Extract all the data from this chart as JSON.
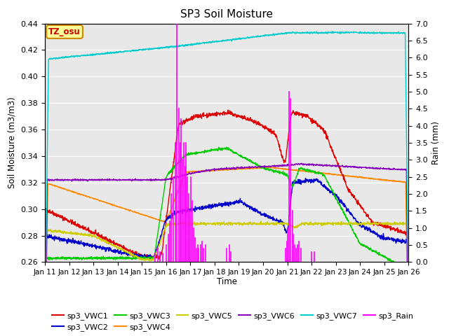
{
  "title": "SP3 Soil Moisture",
  "xlabel": "Time",
  "ylabel_left": "Soil Moisture (m3/m3)",
  "ylabel_right": "Rain (mm)",
  "xlim": [
    0,
    15
  ],
  "ylim_left": [
    0.26,
    0.44
  ],
  "ylim_right": [
    0.0,
    7.0
  ],
  "yticks_left": [
    0.26,
    0.28,
    0.3,
    0.32,
    0.34,
    0.36,
    0.38,
    0.4,
    0.42,
    0.44
  ],
  "yticks_right": [
    0.0,
    0.5,
    1.0,
    1.5,
    2.0,
    2.5,
    3.0,
    3.5,
    4.0,
    4.5,
    5.0,
    5.5,
    6.0,
    6.5,
    7.0
  ],
  "xtick_labels": [
    "Jan 11",
    "Jan 12",
    "Jan 13",
    "Jan 14",
    "Jan 15",
    "Jan 16",
    "Jan 17",
    "Jan 18",
    "Jan 19",
    "Jan 20",
    "Jan 21",
    "Jan 22",
    "Jan 23",
    "Jan 24",
    "Jan 25",
    "Jan 26"
  ],
  "colors": {
    "VWC1": "#dd0000",
    "VWC2": "#0000cc",
    "VWC3": "#00cc00",
    "VWC4": "#ff8800",
    "VWC5": "#cccc00",
    "VWC6": "#8800bb",
    "VWC7": "#00cccc",
    "Rain": "#ff00ff"
  },
  "annotation_text": "TZ_osu",
  "annotation_color": "#cc0000",
  "annotation_bg": "#ffff99",
  "annotation_border": "#cc8800",
  "background_color": "#e8e8e8"
}
